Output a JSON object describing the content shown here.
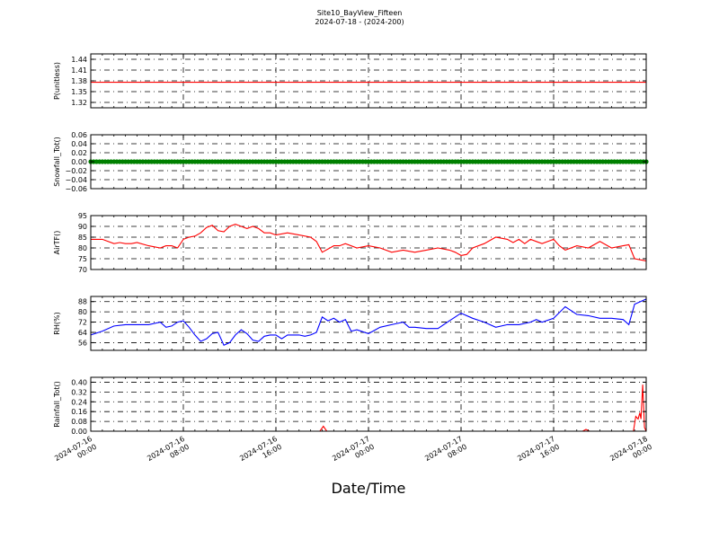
{
  "figure": {
    "title": "Site10_BayView_Fifteen",
    "subtitle": "2024-07-18 - (2024-200)",
    "xlabel": "Date/Time"
  },
  "colors": {
    "red": "#ff0000",
    "green": "#008000",
    "blue": "#0000ff",
    "grid": "#000000"
  },
  "chart_data": [
    {
      "type": "line",
      "ylabel": "P(unitless)",
      "ylim": [
        1.305,
        1.455
      ],
      "yticks": [
        "1.32",
        "1.35",
        "1.38",
        "1.41",
        "1.44"
      ],
      "ytick_values": [
        1.32,
        1.35,
        1.38,
        1.41,
        1.44
      ],
      "color": "#ff0000",
      "grid": true,
      "x": [
        0,
        48
      ],
      "y": [
        1.376,
        1.376
      ]
    },
    {
      "type": "line",
      "ylabel": "Snowfall_Tot()",
      "ylim": [
        -0.06,
        0.06
      ],
      "yticks": [
        "−0.06",
        "−0.04",
        "−0.02",
        "0.00",
        "0.02",
        "0.04",
        "0.06"
      ],
      "ytick_values": [
        -0.06,
        -0.04,
        -0.02,
        0,
        0.02,
        0.04,
        0.06
      ],
      "color": "#008000",
      "grid": true,
      "markers": true,
      "x": [
        0,
        48
      ],
      "y": [
        0,
        0
      ]
    },
    {
      "type": "line",
      "ylabel": "AirTF()",
      "ylim": [
        70,
        95
      ],
      "yticks": [
        "70",
        "75",
        "80",
        "85",
        "90",
        "95"
      ],
      "ytick_values": [
        70,
        75,
        80,
        85,
        90,
        95
      ],
      "color": "#ff0000",
      "grid": true,
      "x": [
        0,
        1,
        2,
        2.5,
        3,
        3.5,
        4,
        5,
        6,
        6.5,
        7,
        7.5,
        8,
        8.5,
        9,
        9.5,
        10,
        10.5,
        11,
        11.5,
        12,
        12.5,
        13,
        13.5,
        14,
        14.5,
        15,
        15.5,
        16,
        17,
        18,
        19,
        19.5,
        20,
        21,
        21.5,
        22,
        23,
        24,
        25,
        26,
        27,
        28,
        29,
        30,
        31,
        31.5,
        32,
        32.5,
        33,
        34,
        35,
        36,
        36.5,
        37,
        37.5,
        38,
        38.5,
        39,
        40,
        40.5,
        41,
        42,
        43,
        44,
        45,
        46,
        46.5,
        47,
        48
      ],
      "y": [
        84,
        84,
        82,
        82.5,
        82,
        82,
        82.5,
        81,
        80,
        81,
        81,
        80,
        84,
        85,
        85.5,
        87,
        89.5,
        90.5,
        88,
        87.5,
        90,
        91,
        90,
        89,
        90,
        89,
        87,
        87,
        86,
        87,
        86,
        85,
        83,
        78,
        81,
        81,
        82,
        80,
        81,
        80,
        78,
        79,
        78,
        79,
        80,
        79,
        78,
        76.5,
        77,
        80,
        82,
        85,
        84,
        82.5,
        84,
        82,
        84,
        83,
        82,
        84,
        81,
        79,
        81,
        80,
        83,
        80,
        81,
        81.5,
        75,
        74
      ]
    },
    {
      "type": "line",
      "ylabel": "RH(%)",
      "ylim": [
        50,
        92
      ],
      "yticks": [
        "56",
        "64",
        "72",
        "80",
        "88"
      ],
      "ytick_values": [
        56,
        64,
        72,
        80,
        88
      ],
      "color": "#0000ff",
      "grid": true,
      "x": [
        0,
        1,
        2,
        3,
        4,
        5,
        6,
        6.5,
        7,
        7.5,
        8,
        8.5,
        9,
        9.5,
        10,
        10.5,
        11,
        11.5,
        12,
        12.5,
        13,
        13.5,
        14,
        14.5,
        15,
        15.5,
        16,
        16.5,
        17,
        17.5,
        18,
        18.5,
        19,
        19.5,
        20,
        20.5,
        21,
        21.5,
        22,
        22.5,
        23,
        24,
        25,
        26,
        27,
        27.5,
        28,
        29,
        30,
        31,
        32,
        33,
        34,
        35,
        36,
        37,
        38,
        38.5,
        39,
        40,
        41,
        42,
        43,
        44,
        45,
        46,
        46.5,
        47,
        48
      ],
      "y": [
        62,
        65,
        69,
        70,
        70,
        70,
        72,
        68,
        69,
        72,
        73,
        68,
        62,
        57,
        59,
        63,
        64,
        54,
        56,
        62,
        66,
        63,
        58,
        57,
        61,
        62,
        62,
        59,
        62,
        62,
        62,
        61,
        62,
        64,
        76,
        73,
        75,
        72,
        74,
        65,
        66,
        63,
        68,
        70,
        72,
        68,
        68,
        67,
        67,
        73,
        79,
        75,
        72,
        68,
        70,
        70,
        72,
        74,
        72,
        75,
        84,
        78,
        77,
        75,
        75,
        74,
        70,
        86,
        90
      ]
    },
    {
      "type": "line",
      "ylabel": "Rainfall_Tot()",
      "ylim": [
        0,
        0.44
      ],
      "yticks": [
        "0.00",
        "0.08",
        "0.16",
        "0.24",
        "0.32",
        "0.40"
      ],
      "ytick_values": [
        0,
        0.08,
        0.16,
        0.24,
        0.32,
        0.4
      ],
      "color": "#ff0000",
      "grid": true,
      "x": [
        0,
        19.8,
        20.1,
        20.4,
        42.5,
        42.8,
        43.1,
        46.9,
        47.1,
        47.3,
        47.45,
        47.55,
        47.7,
        47.85,
        48
      ],
      "y": [
        0,
        0,
        0.04,
        0,
        0,
        0.015,
        0,
        0,
        0.12,
        0.1,
        0.15,
        0.1,
        0.38,
        0.03,
        0
      ]
    }
  ],
  "xaxis": {
    "ticks": [
      {
        "hours": 0,
        "label": "2024-07-16\n00:00"
      },
      {
        "hours": 8,
        "label": "2024-07-16\n08:00"
      },
      {
        "hours": 16,
        "label": "2024-07-16\n16:00"
      },
      {
        "hours": 24,
        "label": "2024-07-17\n00:00"
      },
      {
        "hours": 32,
        "label": "2024-07-17\n08:00"
      },
      {
        "hours": 40,
        "label": "2024-07-17\n16:00"
      },
      {
        "hours": 48,
        "label": "2024-07-18\n00:00"
      }
    ],
    "range_hours": [
      0,
      48
    ]
  }
}
